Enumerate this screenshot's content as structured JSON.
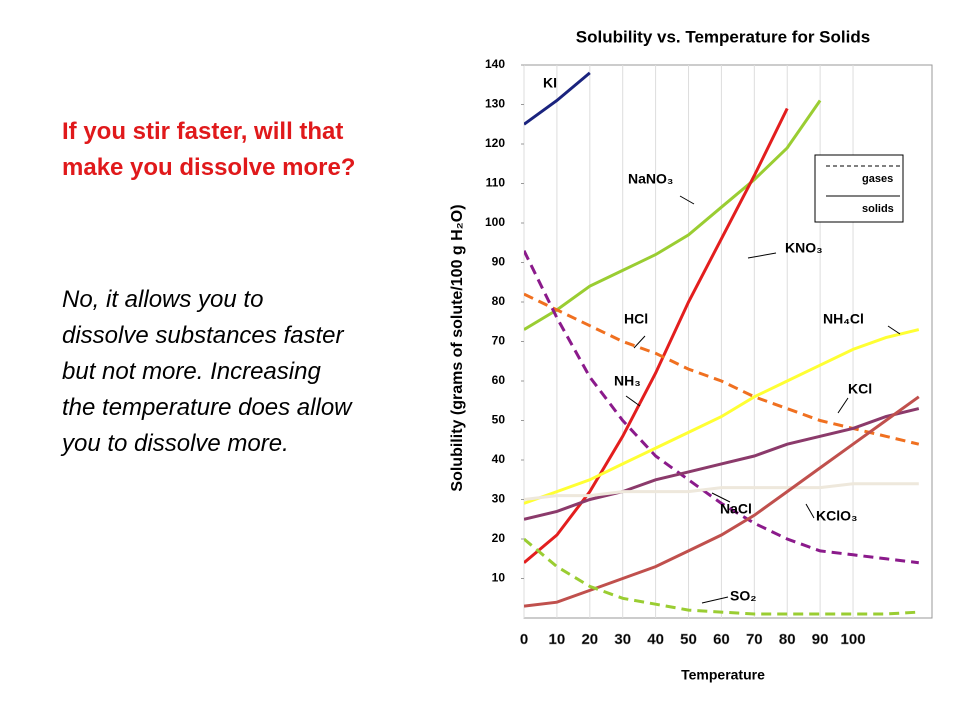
{
  "slide": {
    "question": "If you stir faster, will that make you dissolve more?",
    "answer": "No, it allows you to dissolve substances faster but not more. Increasing the temperature does allow you to dissolve more."
  },
  "chart_data": {
    "type": "line",
    "title": "Solubility vs. Temperature for Solids",
    "x_label": "Temperature",
    "y_label": "Solubility (grams of solute/100 g H₂O)",
    "x": [
      0,
      10,
      20,
      30,
      40,
      50,
      60,
      70,
      80,
      90,
      100,
      110,
      120
    ],
    "xlim": [
      0,
      124
    ],
    "ylim": [
      0,
      140
    ],
    "xticks": [
      0,
      10,
      20,
      30,
      40,
      50,
      60,
      70,
      80,
      90,
      100
    ],
    "yticks": [
      10,
      20,
      30,
      40,
      50,
      60,
      70,
      80,
      90,
      100,
      110,
      120,
      130,
      140
    ],
    "grid": "x",
    "legend": {
      "position": "upper right",
      "entries": [
        {
          "label": "gases",
          "dashed": true
        },
        {
          "label": "solids",
          "dashed": false
        }
      ]
    },
    "series": [
      {
        "name": "KI",
        "color": "#1a237e",
        "dashed": false,
        "values": [
          125,
          131,
          138,
          null,
          null,
          null,
          null,
          null,
          null,
          null,
          null,
          null,
          null
        ]
      },
      {
        "name": "NaNO₃",
        "color": "#9acd32",
        "dashed": false,
        "values": [
          73,
          78,
          84,
          88,
          92,
          97,
          104,
          111,
          119,
          131,
          null,
          null,
          null
        ]
      },
      {
        "name": "KNO₃",
        "color": "#e31e1e",
        "dashed": false,
        "values": [
          14,
          21,
          32,
          46,
          62,
          80,
          96,
          112,
          129,
          null,
          null,
          null,
          null
        ]
      },
      {
        "name": "NH₄Cl",
        "color": "#ffff33",
        "dashed": false,
        "values": [
          29,
          32,
          35,
          39,
          43,
          47,
          51,
          56,
          60,
          64,
          68,
          71,
          73
        ]
      },
      {
        "name": "HCl",
        "color": "#f07020",
        "dashed": true,
        "values": [
          82,
          78,
          74,
          70,
          67,
          63,
          60,
          56,
          53,
          50,
          48,
          46,
          44
        ]
      },
      {
        "name": "NH₃",
        "color": "#8b1a8b",
        "dashed": true,
        "values": [
          93,
          76,
          61,
          50,
          41,
          35,
          29,
          24,
          20,
          17,
          16,
          15,
          14
        ]
      },
      {
        "name": "KCl",
        "color": "#8b3a6b",
        "dashed": false,
        "values": [
          25,
          27,
          30,
          32,
          35,
          37,
          39,
          41,
          44,
          46,
          48,
          51,
          53
        ]
      },
      {
        "name": "NaCl",
        "color": "#eee8dc",
        "dashed": false,
        "values": [
          30,
          31,
          31,
          32,
          32,
          32,
          33,
          33,
          33,
          33,
          34,
          34,
          34
        ]
      },
      {
        "name": "KClO₃",
        "color": "#c0504d",
        "dashed": false,
        "values": [
          3,
          4,
          7,
          10,
          13,
          17,
          21,
          26,
          32,
          38,
          44,
          50,
          56
        ]
      },
      {
        "name": "SO₂",
        "color": "#9acd32",
        "dashed": true,
        "values": [
          20,
          13,
          8,
          5,
          3.5,
          2,
          1.5,
          1,
          1,
          1,
          1,
          1,
          1.5
        ]
      }
    ]
  }
}
